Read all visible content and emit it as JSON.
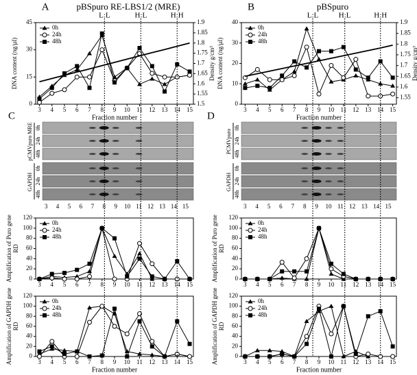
{
  "chart_data": [
    {
      "type": "line",
      "panel": "A",
      "title": "pBSpuro RE-LBS1/2 (MRE)",
      "ylabel": "DNA content (ng/µl)",
      "y2label": "Density g/cm³",
      "xlabel": "Fraction number",
      "x": [
        3,
        4,
        5,
        6,
        7,
        8,
        9,
        10,
        11,
        12,
        13,
        14,
        15
      ],
      "xlim": [
        2.7,
        15.3
      ],
      "xticks": [
        3,
        4,
        5,
        6,
        7,
        8,
        9,
        10,
        11,
        12,
        13,
        14,
        15
      ],
      "ylim": [
        0,
        45
      ],
      "yticks": [
        0,
        15,
        30,
        45
      ],
      "y2lim": [
        1.5,
        1.9
      ],
      "y2ticks": [
        1.5,
        1.55,
        1.6,
        1.65,
        1.7,
        1.75,
        1.8,
        1.85,
        1.9
      ],
      "markers": [
        {
          "x": 8.2,
          "label": "L:L"
        },
        {
          "x": 11.1,
          "label": "H:L"
        },
        {
          "x": 14,
          "label": "H:H"
        }
      ],
      "series": [
        {
          "name": "0h",
          "color": "#000",
          "marker": "triangle",
          "values": [
            4,
            10,
            16,
            19,
            28,
            38,
            15,
            20,
            11,
            14,
            11,
            15,
            16
          ]
        },
        {
          "name": "24h",
          "color": "#000",
          "marker": "circle",
          "values": [
            1,
            6,
            8,
            15,
            15,
            30,
            13,
            20,
            28,
            17,
            15,
            15,
            16
          ]
        },
        {
          "name": "48h",
          "color": "#000",
          "marker": "square",
          "values": [
            3,
            9,
            17,
            21,
            9,
            39,
            12,
            20,
            31,
            21,
            7,
            22,
            18
          ]
        },
        {
          "color": "#000",
          "marker": "none",
          "axis": "y2",
          "values": [
            1.61,
            1.626,
            1.642,
            1.658,
            1.673,
            1.689,
            1.705,
            1.721,
            1.737,
            1.753,
            1.768,
            1.784,
            1.8
          ]
        }
      ]
    },
    {
      "type": "line",
      "panel": "B",
      "title": "pBSpuro",
      "ylabel": "DNA content (ng/µl)",
      "y2label": "Density g/cm³",
      "xlabel": "Fraction number",
      "x": [
        3,
        4,
        5,
        6,
        7,
        8,
        9,
        10,
        11,
        12,
        13,
        14,
        15
      ],
      "xlim": [
        2.7,
        15.3
      ],
      "xticks": [
        3,
        4,
        5,
        6,
        7,
        8,
        9,
        10,
        11,
        12,
        13,
        14,
        15
      ],
      "ylim": [
        0,
        40
      ],
      "yticks": [
        0,
        10,
        20,
        30,
        40
      ],
      "y2lim": [
        1.52,
        1.9
      ],
      "y2ticks": [
        1.55,
        1.6,
        1.65,
        1.7,
        1.75,
        1.8,
        1.85,
        1.9
      ],
      "markers": [
        {
          "x": 8.5,
          "label": "L:L"
        },
        {
          "x": 11.1,
          "label": "H:L"
        },
        {
          "x": 14,
          "label": "H:H"
        }
      ],
      "series": [
        {
          "name": "0h",
          "color": "#000",
          "marker": "triangle",
          "values": [
            10,
            12,
            7,
            12,
            16,
            37,
            22,
            11,
            12,
            14,
            12,
            10,
            9
          ]
        },
        {
          "name": "24h",
          "color": "#000",
          "marker": "circle",
          "values": [
            13,
            17,
            12,
            12,
            14,
            28,
            5,
            19,
            13,
            22,
            4,
            4,
            5
          ]
        },
        {
          "name": "48h",
          "color": "#000",
          "marker": "square",
          "values": [
            8,
            9,
            8,
            14,
            21,
            18,
            26,
            26,
            28,
            17,
            13,
            21,
            13
          ]
        },
        {
          "color": "#000",
          "marker": "none",
          "axis": "y2",
          "values": [
            1.65,
            1.662,
            1.674,
            1.686,
            1.698,
            1.71,
            1.722,
            1.734,
            1.746,
            1.758,
            1.77,
            1.782,
            1.795
          ]
        }
      ]
    },
    {
      "type": "line",
      "ylabel": [
        "Amplification of Puro gene",
        "RD"
      ],
      "x": [
        3,
        4,
        5,
        6,
        7,
        8,
        9,
        10,
        11,
        12,
        13,
        14,
        15
      ],
      "xlim": [
        2.7,
        15.3
      ],
      "xticks": [
        3,
        4,
        5,
        6,
        7,
        8,
        9,
        10,
        11,
        12,
        13,
        14,
        15
      ],
      "ylim": [
        0,
        120
      ],
      "yticks": [
        0,
        20,
        40,
        60,
        80,
        100,
        120
      ],
      "series": [
        {
          "name": "0h",
          "color": "#000",
          "marker": "triangle",
          "values": [
            0,
            5,
            3,
            5,
            15,
            100,
            45,
            10,
            50,
            0,
            0,
            0,
            0
          ]
        },
        {
          "name": "24h",
          "color": "#000",
          "marker": "circle",
          "values": [
            0,
            2,
            0,
            0,
            5,
            100,
            0,
            0,
            70,
            30,
            0,
            0,
            0
          ]
        },
        {
          "name": "48h",
          "color": "#000",
          "marker": "square",
          "values": [
            0,
            10,
            12,
            18,
            30,
            100,
            80,
            5,
            40,
            5,
            0,
            35,
            0
          ]
        }
      ]
    },
    {
      "type": "line",
      "ylabel": [
        "Amplification of Puro gene",
        "RD"
      ],
      "x": [
        3,
        4,
        5,
        6,
        7,
        8,
        9,
        10,
        11,
        12,
        13,
        14,
        15
      ],
      "xlim": [
        2.7,
        15.3
      ],
      "xticks": [
        3,
        4,
        5,
        6,
        7,
        8,
        9,
        10,
        11,
        12,
        13,
        14,
        15
      ],
      "ylim": [
        0,
        120
      ],
      "yticks": [
        0,
        20,
        40,
        60,
        80,
        100,
        120
      ],
      "series": [
        {
          "name": "0h",
          "color": "#000",
          "marker": "triangle",
          "values": [
            0,
            0,
            0,
            2,
            0,
            0,
            100,
            10,
            0,
            0,
            0,
            0,
            0
          ]
        },
        {
          "name": "24h",
          "color": "#000",
          "marker": "circle",
          "values": [
            0,
            0,
            0,
            33,
            2,
            40,
            100,
            20,
            5,
            0,
            0,
            0,
            0
          ]
        },
        {
          "name": "48h",
          "color": "#000",
          "marker": "square",
          "values": [
            0,
            0,
            0,
            15,
            15,
            15,
            100,
            30,
            10,
            0,
            0,
            0,
            0
          ]
        }
      ]
    },
    {
      "type": "line",
      "ylabel": [
        "Amplification of GAPDH gene",
        "RD"
      ],
      "xlabel": "Fraction number",
      "x": [
        3,
        4,
        5,
        6,
        7,
        8,
        9,
        10,
        11,
        12,
        13,
        14,
        15
      ],
      "xlim": [
        2.7,
        15.3
      ],
      "xticks": [
        3,
        4,
        5,
        6,
        7,
        8,
        9,
        10,
        11,
        12,
        13,
        14,
        15
      ],
      "ylim": [
        0,
        120
      ],
      "yticks": [
        0,
        20,
        40,
        60,
        80,
        100,
        120
      ],
      "series": [
        {
          "name": "0h",
          "color": "#000",
          "marker": "triangle",
          "values": [
            5,
            15,
            12,
            10,
            97,
            100,
            85,
            10,
            5,
            3,
            0,
            5,
            0
          ]
        },
        {
          "name": "24h",
          "color": "#000",
          "marker": "circle",
          "values": [
            0,
            30,
            0,
            0,
            68,
            100,
            60,
            45,
            85,
            30,
            0,
            5,
            0
          ]
        },
        {
          "name": "48h",
          "color": "#000",
          "marker": "square",
          "values": [
            10,
            20,
            5,
            10,
            0,
            2,
            95,
            0,
            70,
            20,
            0,
            70,
            25
          ]
        }
      ]
    },
    {
      "type": "line",
      "ylabel": [
        "Amplification of GAPDH gene",
        "RD"
      ],
      "xlabel": "Fraction number",
      "x": [
        3,
        4,
        5,
        6,
        7,
        8,
        9,
        10,
        11,
        12,
        13,
        14,
        15
      ],
      "xlim": [
        2.7,
        15.3
      ],
      "xticks": [
        3,
        4,
        5,
        6,
        7,
        8,
        9,
        10,
        11,
        12,
        13,
        14,
        15
      ],
      "ylim": [
        0,
        120
      ],
      "yticks": [
        0,
        20,
        40,
        60,
        80,
        100,
        120
      ],
      "series": [
        {
          "name": "0h",
          "color": "#000",
          "marker": "triangle",
          "values": [
            0,
            12,
            12,
            10,
            0,
            70,
            90,
            100,
            0,
            10,
            0,
            0,
            0
          ]
        },
        {
          "name": "24h",
          "color": "#000",
          "marker": "circle",
          "values": [
            0,
            0,
            0,
            5,
            0,
            40,
            100,
            45,
            100,
            0,
            5,
            0,
            0
          ]
        },
        {
          "name": "48h",
          "color": "#000",
          "marker": "square",
          "values": [
            0,
            0,
            0,
            5,
            0,
            25,
            95,
            0,
            100,
            5,
            80,
            90,
            20
          ]
        }
      ]
    }
  ],
  "gels": [
    {
      "panel": "C",
      "lanes": [
        3,
        4,
        5,
        6,
        7,
        8,
        9,
        10,
        11,
        12,
        13,
        14,
        15
      ],
      "groups": [
        {
          "label": "pCMVpuro MRE",
          "rows": [
            "0h",
            "24h",
            "48h"
          ]
        },
        {
          "label": "GAPDH",
          "rows": [
            "0h",
            "24h",
            "48h"
          ]
        }
      ]
    },
    {
      "panel": "D",
      "lanes": [
        3,
        4,
        5,
        6,
        7,
        8,
        9,
        10,
        11,
        12,
        13,
        14,
        15
      ],
      "groups": [
        {
          "label": "PCMVpuro",
          "rows": [
            "0h",
            "24h",
            "48h"
          ]
        },
        {
          "label": "GAPDH",
          "rows": [
            "0h",
            "24h",
            "48h"
          ]
        }
      ]
    }
  ]
}
